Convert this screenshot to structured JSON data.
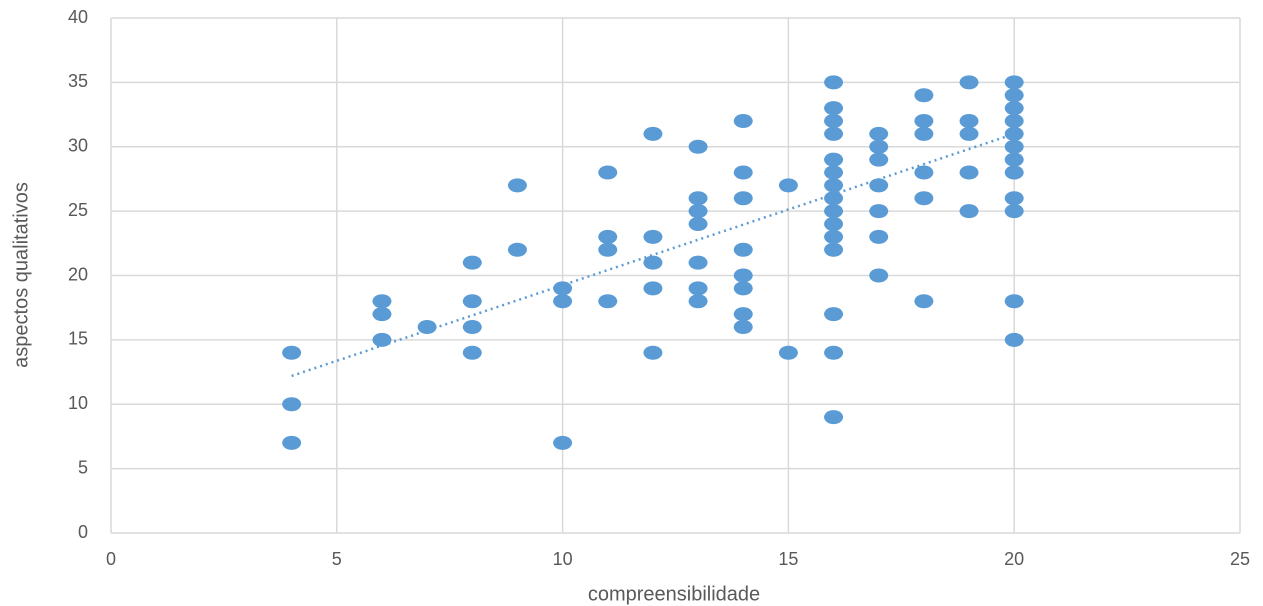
{
  "chart_data": {
    "type": "scatter",
    "x_label": "compreensibilidade",
    "y_label": "aspectos qualitativos",
    "xlim": [
      0,
      25
    ],
    "xticks": [
      0,
      5,
      10,
      15,
      20,
      25
    ],
    "ylim": [
      0,
      40
    ],
    "yticks": [
      0,
      5,
      10,
      15,
      20,
      25,
      30,
      35,
      40
    ],
    "grid": true,
    "series": [
      {
        "color": "#5b9bd5",
        "x": [
          4,
          4,
          4,
          6,
          6,
          6,
          7,
          8,
          8,
          8,
          8,
          9,
          9,
          10,
          10,
          10,
          11,
          11,
          11,
          11,
          12,
          12,
          12,
          12,
          12,
          13,
          13,
          13,
          13,
          13,
          13,
          13,
          14,
          14,
          14,
          14,
          14,
          14,
          14,
          14,
          15,
          15,
          16,
          16,
          16,
          16,
          16,
          16,
          16,
          16,
          16,
          16,
          16,
          16,
          16,
          16,
          16,
          17,
          17,
          17,
          17,
          17,
          17,
          17,
          18,
          18,
          18,
          18,
          18,
          18,
          19,
          19,
          19,
          19,
          19,
          20,
          20,
          20,
          20,
          20,
          20,
          20,
          20,
          20,
          20,
          20,
          20
        ],
        "values": [
          14,
          10,
          7,
          18,
          17,
          15,
          16,
          21,
          18,
          16,
          14,
          27,
          22,
          19,
          18,
          7,
          28,
          23,
          22,
          18,
          31,
          23,
          21,
          19,
          14,
          30,
          26,
          25,
          24,
          21,
          19,
          18,
          32,
          28,
          26,
          22,
          20,
          19,
          17,
          16,
          27,
          14,
          35,
          33,
          32,
          31,
          29,
          28,
          27,
          26,
          25,
          24,
          23,
          22,
          17,
          14,
          9,
          31,
          30,
          29,
          27,
          25,
          23,
          20,
          34,
          32,
          31,
          28,
          26,
          18,
          35,
          32,
          31,
          28,
          25,
          35,
          34,
          33,
          32,
          31,
          30,
          29,
          28,
          26,
          25,
          18,
          15
        ]
      }
    ],
    "trendline": {
      "color": "#5b9bd5",
      "x": [
        4,
        20
      ],
      "values": [
        12.2,
        31
      ]
    }
  }
}
